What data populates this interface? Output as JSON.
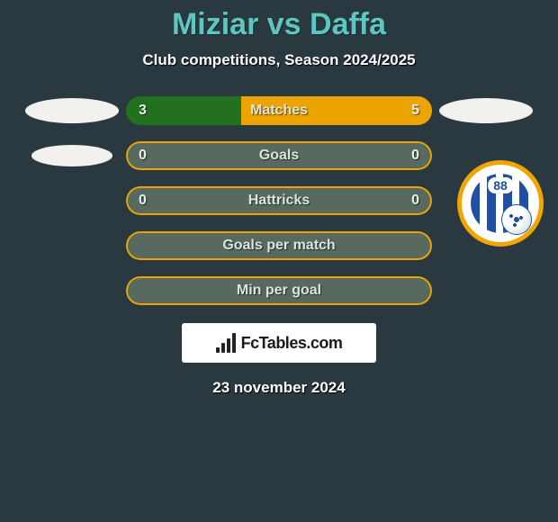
{
  "title": "Miziar vs Daffa",
  "subtitle": "Club competitions, Season 2024/2025",
  "date": "23 november 2024",
  "branding": {
    "text": "FcTables.com"
  },
  "colors": {
    "background": "#2a3840",
    "title": "#5dc6c0",
    "text": "#ffffff",
    "bar_left": "#23701f",
    "bar_right": "#eca400",
    "bar_empty": "#586a60",
    "bar_label": "#dbe4e0"
  },
  "badge_right": {
    "number": "88"
  },
  "stats": [
    {
      "key": "matches",
      "label": "Matches",
      "left_value": "3",
      "right_value": "5",
      "left_pct": 37.5,
      "right_pct": 62.5,
      "left_color": "#23701f",
      "right_color": "#eca400",
      "show_values": true,
      "left_logo": "ellipse",
      "right_logo": "ellipse"
    },
    {
      "key": "goals",
      "label": "Goals",
      "left_value": "0",
      "right_value": "0",
      "left_pct": 50,
      "right_pct": 50,
      "left_color": "#586a60",
      "right_color": "#586a60",
      "border_color": "#eca400",
      "show_values": true,
      "left_logo": "ellipse-small",
      "right_logo": "none"
    },
    {
      "key": "hattricks",
      "label": "Hattricks",
      "left_value": "0",
      "right_value": "0",
      "left_pct": 50,
      "right_pct": 50,
      "left_color": "#586a60",
      "right_color": "#586a60",
      "border_color": "#eca400",
      "show_values": true,
      "left_logo": "none",
      "right_logo": "club-badge"
    },
    {
      "key": "goals_per_match",
      "label": "Goals per match",
      "left_value": "",
      "right_value": "",
      "left_pct": 50,
      "right_pct": 50,
      "left_color": "#586a60",
      "right_color": "#586a60",
      "border_color": "#eca400",
      "show_values": false,
      "left_logo": "none",
      "right_logo": "none"
    },
    {
      "key": "min_per_goal",
      "label": "Min per goal",
      "left_value": "",
      "right_value": "",
      "left_pct": 50,
      "right_pct": 50,
      "left_color": "#586a60",
      "right_color": "#586a60",
      "border_color": "#eca400",
      "show_values": false,
      "left_logo": "none",
      "right_logo": "none"
    }
  ]
}
